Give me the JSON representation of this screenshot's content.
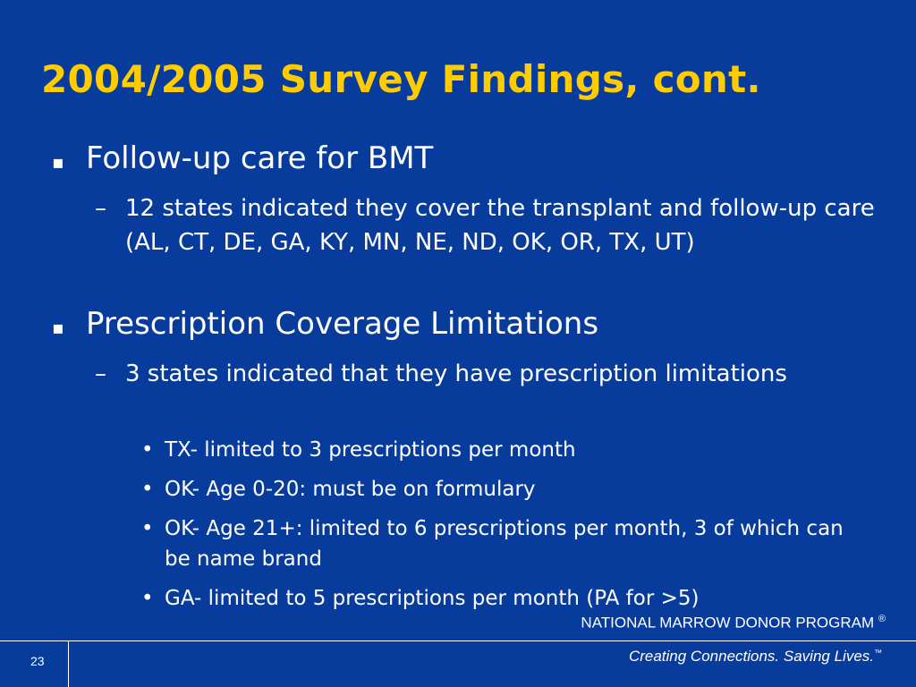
{
  "slide": {
    "title": "2004/2005 Survey Findings, cont.",
    "items": [
      {
        "bullet": "▪",
        "text": "Follow-up care for BMT",
        "sub": [
          {
            "dash": "–",
            "text": "12 states indicated they cover the transplant and follow-up care (AL, CT, DE, GA, KY, MN, NE, ND, OK, OR, TX, UT)"
          }
        ]
      },
      {
        "bullet": "▪",
        "text": "Prescription Coverage Limitations",
        "sub": [
          {
            "dash": "–",
            "text": "3 states indicated that they have prescription limitations",
            "sub": [
              {
                "dot": "•",
                "text": "TX- limited to 3 prescriptions per month"
              },
              {
                "dot": "•",
                "text": "OK- Age 0-20: must be on formulary"
              },
              {
                "dot": "•",
                "text": "OK- Age 21+: limited to 6 prescriptions per month, 3 of which can  be name brand"
              },
              {
                "dot": "•",
                "text": "GA- limited to 5 prescriptions per month (PA for >5)"
              }
            ]
          }
        ]
      }
    ]
  },
  "footer": {
    "org": "NATIONAL MARROW DONOR PROGRAM",
    "org_mark": "®",
    "tagline": "Creating Connections. Saving Lives.",
    "tagline_mark": "™",
    "page_number": "23"
  },
  "colors": {
    "background": "#083c9c",
    "title": "#ffcc00",
    "text": "#ffffff"
  }
}
